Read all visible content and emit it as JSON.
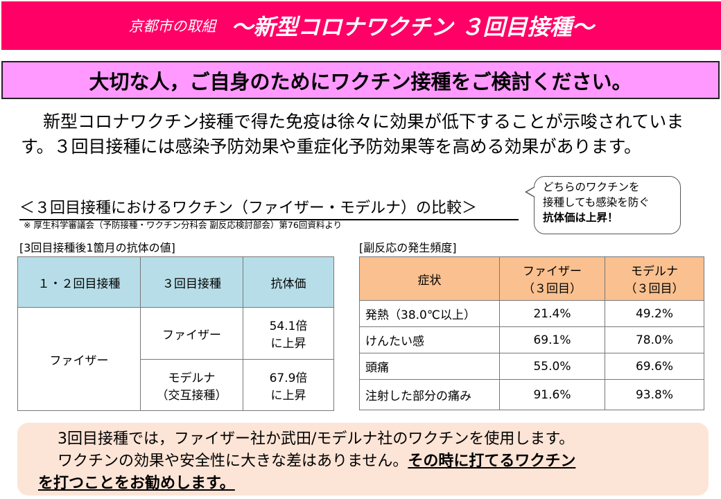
{
  "header": {
    "org": "京都市の取組",
    "title": "～新型コロナワクチン ３回目接種～"
  },
  "banner": "大切な人，ご自身のためにワクチン接種をご検討ください。",
  "intro": "新型コロナワクチン接種で得た免疫は徐々に効果が低下することが示唆されています。３回目接種には感染予防効果や重症化予防効果等を高める効果があります。",
  "comparison": {
    "title": "＜３回目接種におけるワクチン（ファイザー・モデルナ）の比較＞",
    "note": "※ 厚生科学審議会（予防接種・ワクチン分科会 副反応検討部会）第76回資料より"
  },
  "bubble": {
    "line1": "どちらのワクチンを",
    "line2": "接種しても感染を防ぐ",
    "line3": "抗体価は上昇！"
  },
  "antibody": {
    "caption": "[3回目接種後1箇月の抗体の値]",
    "headers": [
      "１・２回目接種",
      "３回目接種",
      "抗体価"
    ],
    "first": "ファイザー",
    "rows": [
      {
        "third": "ファイザー",
        "value": "54.1倍",
        "value2": "に上昇"
      },
      {
        "third": "モデルナ",
        "third2": "（交互接種）",
        "value": "67.9倍",
        "value2": "に上昇"
      }
    ]
  },
  "side_effects": {
    "caption": "[副反応の発生頻度]",
    "headers": [
      "症状",
      "ファイザー",
      "（３回目）",
      "モデルナ",
      "（３回目）"
    ],
    "rows": [
      [
        "発熱（38.0℃以上）",
        "21.4%",
        "49.2%"
      ],
      [
        "けんたい感",
        "69.1%",
        "78.0%"
      ],
      [
        "頭痛",
        "55.0%",
        "69.6%"
      ],
      [
        "注射した部分の痛み",
        "91.6%",
        "93.8%"
      ]
    ]
  },
  "bottom": {
    "line1": "3回目接種では，ファイザー社か武田/モデルナ社のワクチンを使用します。",
    "line2": "ワクチンの効果や安全性に大きな差はありません。",
    "emph1": "その時に打てるワクチン",
    "emph2": "を打つことをお勧めします。"
  }
}
